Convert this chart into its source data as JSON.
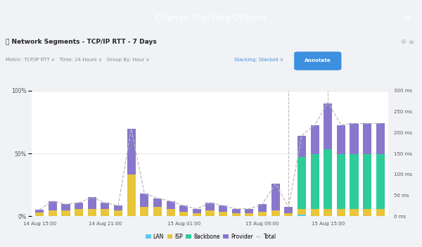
{
  "title": "Change Stacking Options",
  "chart_title": "Network Segments - TCP/IP RTT - 7 Days",
  "header_bg": "#6aafe6",
  "header_text": "#ffffff",
  "colors": {
    "LAN": "#5bc8f5",
    "ISP": "#e8c53a",
    "Backbone": "#2ecc9a",
    "Provider": "#8877cc",
    "Total": "#bbbbbb"
  },
  "bar_width": 0.65,
  "num_bars": 27,
  "bar_data": {
    "LAN": [
      0,
      0,
      0,
      0,
      0,
      0,
      0,
      0,
      0,
      0,
      0,
      0,
      0,
      0,
      0,
      0,
      0,
      0,
      0,
      0,
      2,
      0,
      0,
      0,
      0,
      0,
      0
    ],
    "ISP": [
      5,
      8,
      8,
      10,
      10,
      10,
      8,
      55,
      12,
      12,
      10,
      6,
      4,
      8,
      6,
      4,
      4,
      6,
      8,
      4,
      8,
      10,
      10,
      10,
      10,
      10,
      10
    ],
    "Backbone": [
      0,
      0,
      0,
      0,
      0,
      0,
      0,
      0,
      0,
      0,
      0,
      0,
      0,
      0,
      0,
      0,
      0,
      0,
      0,
      0,
      68,
      72,
      78,
      72,
      72,
      72,
      72
    ],
    "Provider": [
      4,
      12,
      8,
      8,
      15,
      8,
      6,
      60,
      18,
      12,
      10,
      8,
      6,
      10,
      8,
      6,
      6,
      10,
      35,
      8,
      28,
      38,
      60,
      38,
      40,
      40,
      40
    ]
  },
  "dashed_vlines_x": [
    19,
    22
  ],
  "total_line_x": [
    0,
    1,
    2,
    3,
    4,
    5,
    6,
    7,
    8,
    9,
    10,
    11,
    12,
    13,
    14,
    15,
    16,
    17,
    18,
    19,
    20,
    21,
    22,
    23,
    24,
    25,
    26
  ],
  "total_line_y": [
    9,
    20,
    16,
    18,
    25,
    18,
    14,
    115,
    30,
    24,
    20,
    14,
    10,
    18,
    14,
    10,
    10,
    16,
    43,
    12,
    106,
    120,
    150,
    120,
    122,
    122,
    122
  ],
  "xtick_positions": [
    0,
    5,
    11,
    17,
    22
  ],
  "xtick_labels": [
    "14 Aug 15:00",
    "14 Aug 21:00",
    "15 Aug 01:00",
    "15 Aug 09:00",
    "15 Aug 15:00"
  ],
  "yticks_left_vals": [
    0,
    82.5,
    165
  ],
  "yticks_left_labels": [
    "0%",
    "50%",
    "100%"
  ],
  "yticks_right_vals": [
    0,
    27.5,
    55,
    82.5,
    110,
    137.5,
    165
  ],
  "yticks_right_labels": [
    "0 ms",
    "50 ms",
    "100 ms",
    "150 ms",
    "200 ms",
    "250 ms",
    "300 ms"
  ],
  "ymax": 165,
  "grid_color": "#e5e5e5",
  "panel_bg": "#ffffff",
  "outer_bg": "#f0f2f5"
}
